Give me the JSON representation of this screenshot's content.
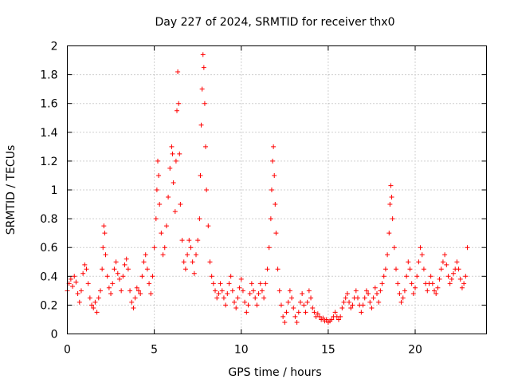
{
  "chart_data": {
    "type": "scatter",
    "title": "Day 227 of 2024, SRMTID for receiver thx0",
    "xlabel": "GPS time / hours",
    "ylabel": "SRMTID / TECUs",
    "xlim": [
      0,
      24.1
    ],
    "ylim": [
      0,
      2
    ],
    "xticks": [
      0,
      5,
      10,
      15,
      20
    ],
    "xtick_labels": [
      "0",
      "5",
      "10",
      "15",
      "20"
    ],
    "yticks": [
      0,
      0.2,
      0.4,
      0.6,
      0.8,
      1,
      1.2,
      1.4,
      1.6,
      1.8,
      2
    ],
    "ytick_labels": [
      "0",
      "0.2",
      "0.4",
      "0.6",
      "0.8",
      "1",
      "1.2",
      "1.4",
      "1.6",
      "1.8",
      "2"
    ],
    "grid": true,
    "marker": "+",
    "color": "#ff0000",
    "series": [
      {
        "name": "SRMTID",
        "points": [
          [
            0.0,
            0.3
          ],
          [
            0.1,
            0.35
          ],
          [
            0.2,
            0.38
          ],
          [
            0.3,
            0.33
          ],
          [
            0.4,
            0.4
          ],
          [
            0.5,
            0.36
          ],
          [
            0.6,
            0.28
          ],
          [
            0.7,
            0.22
          ],
          [
            0.8,
            0.3
          ],
          [
            0.9,
            0.42
          ],
          [
            1.0,
            0.48
          ],
          [
            1.1,
            0.45
          ],
          [
            1.2,
            0.35
          ],
          [
            1.3,
            0.25
          ],
          [
            1.4,
            0.2
          ],
          [
            1.5,
            0.18
          ],
          [
            1.6,
            0.22
          ],
          [
            1.7,
            0.15
          ],
          [
            1.8,
            0.25
          ],
          [
            1.9,
            0.3
          ],
          [
            2.0,
            0.45
          ],
          [
            2.05,
            0.6
          ],
          [
            2.1,
            0.75
          ],
          [
            2.15,
            0.7
          ],
          [
            2.2,
            0.55
          ],
          [
            2.3,
            0.4
          ],
          [
            2.4,
            0.32
          ],
          [
            2.5,
            0.28
          ],
          [
            2.6,
            0.35
          ],
          [
            2.7,
            0.45
          ],
          [
            2.8,
            0.5
          ],
          [
            2.9,
            0.42
          ],
          [
            3.0,
            0.38
          ],
          [
            3.1,
            0.3
          ],
          [
            3.2,
            0.4
          ],
          [
            3.3,
            0.48
          ],
          [
            3.4,
            0.52
          ],
          [
            3.5,
            0.45
          ],
          [
            3.6,
            0.3
          ],
          [
            3.7,
            0.22
          ],
          [
            3.8,
            0.18
          ],
          [
            3.9,
            0.25
          ],
          [
            4.0,
            0.32
          ],
          [
            4.1,
            0.3
          ],
          [
            4.2,
            0.28
          ],
          [
            4.3,
            0.4
          ],
          [
            4.4,
            0.5
          ],
          [
            4.5,
            0.55
          ],
          [
            4.6,
            0.45
          ],
          [
            4.7,
            0.35
          ],
          [
            4.8,
            0.28
          ],
          [
            4.9,
            0.4
          ],
          [
            5.0,
            0.6
          ],
          [
            5.1,
            0.8
          ],
          [
            5.15,
            1.0
          ],
          [
            5.2,
            1.2
          ],
          [
            5.25,
            1.1
          ],
          [
            5.3,
            0.9
          ],
          [
            5.4,
            0.7
          ],
          [
            5.5,
            0.55
          ],
          [
            5.6,
            0.6
          ],
          [
            5.7,
            0.75
          ],
          [
            5.8,
            0.95
          ],
          [
            5.9,
            1.15
          ],
          [
            6.0,
            1.3
          ],
          [
            6.05,
            1.25
          ],
          [
            6.1,
            1.05
          ],
          [
            6.2,
            0.85
          ],
          [
            6.25,
            1.2
          ],
          [
            6.3,
            1.55
          ],
          [
            6.35,
            1.82
          ],
          [
            6.4,
            1.6
          ],
          [
            6.45,
            1.25
          ],
          [
            6.5,
            0.9
          ],
          [
            6.6,
            0.65
          ],
          [
            6.7,
            0.5
          ],
          [
            6.8,
            0.45
          ],
          [
            6.9,
            0.55
          ],
          [
            7.0,
            0.65
          ],
          [
            7.1,
            0.6
          ],
          [
            7.2,
            0.5
          ],
          [
            7.3,
            0.42
          ],
          [
            7.4,
            0.55
          ],
          [
            7.5,
            0.65
          ],
          [
            7.6,
            0.8
          ],
          [
            7.65,
            1.1
          ],
          [
            7.7,
            1.45
          ],
          [
            7.75,
            1.7
          ],
          [
            7.8,
            1.94
          ],
          [
            7.85,
            1.85
          ],
          [
            7.9,
            1.6
          ],
          [
            7.95,
            1.3
          ],
          [
            8.0,
            1.0
          ],
          [
            8.1,
            0.75
          ],
          [
            8.2,
            0.5
          ],
          [
            8.3,
            0.4
          ],
          [
            8.4,
            0.35
          ],
          [
            8.5,
            0.3
          ],
          [
            8.6,
            0.25
          ],
          [
            8.7,
            0.28
          ],
          [
            8.8,
            0.35
          ],
          [
            8.9,
            0.3
          ],
          [
            9.0,
            0.25
          ],
          [
            9.1,
            0.2
          ],
          [
            9.2,
            0.28
          ],
          [
            9.3,
            0.35
          ],
          [
            9.4,
            0.4
          ],
          [
            9.5,
            0.3
          ],
          [
            9.6,
            0.22
          ],
          [
            9.7,
            0.18
          ],
          [
            9.8,
            0.25
          ],
          [
            9.9,
            0.32
          ],
          [
            10.0,
            0.38
          ],
          [
            10.1,
            0.3
          ],
          [
            10.2,
            0.22
          ],
          [
            10.3,
            0.15
          ],
          [
            10.4,
            0.2
          ],
          [
            10.5,
            0.28
          ],
          [
            10.6,
            0.35
          ],
          [
            10.7,
            0.3
          ],
          [
            10.8,
            0.25
          ],
          [
            10.9,
            0.2
          ],
          [
            11.0,
            0.28
          ],
          [
            11.1,
            0.35
          ],
          [
            11.2,
            0.3
          ],
          [
            11.3,
            0.25
          ],
          [
            11.4,
            0.35
          ],
          [
            11.5,
            0.45
          ],
          [
            11.6,
            0.6
          ],
          [
            11.7,
            0.8
          ],
          [
            11.75,
            1.0
          ],
          [
            11.8,
            1.2
          ],
          [
            11.85,
            1.3
          ],
          [
            11.9,
            1.1
          ],
          [
            11.95,
            0.9
          ],
          [
            12.0,
            0.7
          ],
          [
            12.1,
            0.45
          ],
          [
            12.2,
            0.3
          ],
          [
            12.3,
            0.2
          ],
          [
            12.4,
            0.12
          ],
          [
            12.5,
            0.08
          ],
          [
            12.6,
            0.15
          ],
          [
            12.7,
            0.22
          ],
          [
            12.8,
            0.3
          ],
          [
            12.9,
            0.25
          ],
          [
            13.0,
            0.18
          ],
          [
            13.1,
            0.12
          ],
          [
            13.2,
            0.08
          ],
          [
            13.3,
            0.15
          ],
          [
            13.4,
            0.22
          ],
          [
            13.5,
            0.28
          ],
          [
            13.6,
            0.2
          ],
          [
            13.7,
            0.15
          ],
          [
            13.8,
            0.22
          ],
          [
            13.9,
            0.3
          ],
          [
            14.0,
            0.25
          ],
          [
            14.1,
            0.18
          ],
          [
            14.2,
            0.15
          ],
          [
            14.3,
            0.12
          ],
          [
            14.4,
            0.14
          ],
          [
            14.5,
            0.12
          ],
          [
            14.6,
            0.1
          ],
          [
            14.7,
            0.11
          ],
          [
            14.8,
            0.09
          ],
          [
            14.9,
            0.1
          ],
          [
            15.0,
            0.08
          ],
          [
            15.1,
            0.09
          ],
          [
            15.2,
            0.1
          ],
          [
            15.3,
            0.12
          ],
          [
            15.4,
            0.15
          ],
          [
            15.5,
            0.12
          ],
          [
            15.6,
            0.1
          ],
          [
            15.7,
            0.12
          ],
          [
            15.8,
            0.18
          ],
          [
            15.9,
            0.22
          ],
          [
            16.0,
            0.25
          ],
          [
            16.1,
            0.28
          ],
          [
            16.2,
            0.22
          ],
          [
            16.3,
            0.18
          ],
          [
            16.4,
            0.2
          ],
          [
            16.5,
            0.25
          ],
          [
            16.6,
            0.3
          ],
          [
            16.7,
            0.25
          ],
          [
            16.8,
            0.2
          ],
          [
            16.9,
            0.15
          ],
          [
            17.0,
            0.2
          ],
          [
            17.1,
            0.25
          ],
          [
            17.2,
            0.3
          ],
          [
            17.3,
            0.28
          ],
          [
            17.4,
            0.22
          ],
          [
            17.5,
            0.18
          ],
          [
            17.6,
            0.25
          ],
          [
            17.7,
            0.32
          ],
          [
            17.8,
            0.28
          ],
          [
            17.9,
            0.22
          ],
          [
            18.0,
            0.3
          ],
          [
            18.1,
            0.35
          ],
          [
            18.2,
            0.4
          ],
          [
            18.3,
            0.45
          ],
          [
            18.4,
            0.55
          ],
          [
            18.5,
            0.7
          ],
          [
            18.55,
            0.9
          ],
          [
            18.6,
            1.03
          ],
          [
            18.65,
            0.95
          ],
          [
            18.7,
            0.8
          ],
          [
            18.8,
            0.6
          ],
          [
            18.9,
            0.45
          ],
          [
            19.0,
            0.35
          ],
          [
            19.1,
            0.28
          ],
          [
            19.2,
            0.22
          ],
          [
            19.3,
            0.25
          ],
          [
            19.4,
            0.3
          ],
          [
            19.5,
            0.4
          ],
          [
            19.6,
            0.5
          ],
          [
            19.7,
            0.45
          ],
          [
            19.8,
            0.35
          ],
          [
            19.9,
            0.28
          ],
          [
            20.0,
            0.32
          ],
          [
            20.1,
            0.4
          ],
          [
            20.2,
            0.5
          ],
          [
            20.3,
            0.6
          ],
          [
            20.4,
            0.55
          ],
          [
            20.5,
            0.45
          ],
          [
            20.6,
            0.35
          ],
          [
            20.7,
            0.3
          ],
          [
            20.8,
            0.35
          ],
          [
            20.9,
            0.4
          ],
          [
            21.0,
            0.35
          ],
          [
            21.1,
            0.3
          ],
          [
            21.2,
            0.28
          ],
          [
            21.3,
            0.32
          ],
          [
            21.4,
            0.38
          ],
          [
            21.5,
            0.45
          ],
          [
            21.6,
            0.5
          ],
          [
            21.7,
            0.55
          ],
          [
            21.8,
            0.48
          ],
          [
            21.9,
            0.4
          ],
          [
            22.0,
            0.35
          ],
          [
            22.1,
            0.38
          ],
          [
            22.2,
            0.42
          ],
          [
            22.3,
            0.45
          ],
          [
            22.4,
            0.5
          ],
          [
            22.5,
            0.45
          ],
          [
            22.6,
            0.38
          ],
          [
            22.7,
            0.32
          ],
          [
            22.8,
            0.35
          ],
          [
            22.9,
            0.4
          ],
          [
            23.0,
            0.6
          ]
        ]
      }
    ]
  }
}
